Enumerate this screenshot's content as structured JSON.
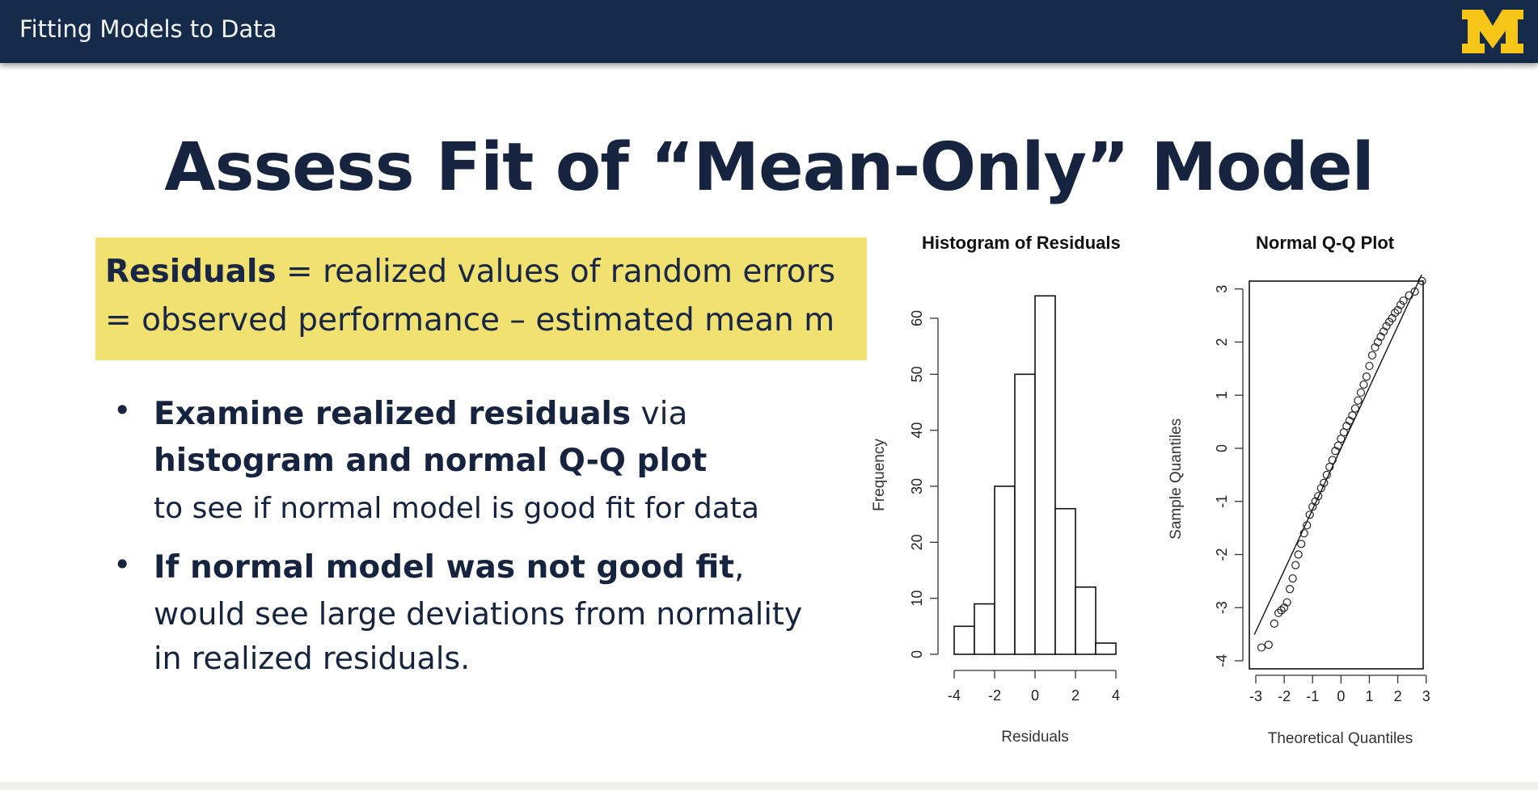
{
  "header": {
    "title": "Fitting Models to Data",
    "logo": "M",
    "colors": {
      "bar": "#162a4a",
      "logo": "#f5c518"
    }
  },
  "slide": {
    "title": "Assess Fit of “Mean-Only” Model",
    "highlight": {
      "line1_bold": "Residuals",
      "line1_rest": " = realized values of random errors",
      "line2": "= observed performance – estimated mean m",
      "color": "#f0e171"
    },
    "bullets": [
      {
        "bold1": "Examine realized residuals",
        "text1": " via",
        "bold2": "histogram and normal Q-Q plot",
        "text2": "to see if normal model is good fit for data"
      },
      {
        "bold1": "If normal model was not good fit",
        "text1": ",",
        "text2": "would see large deviations from normality",
        "text3": "in realized residuals."
      }
    ]
  },
  "chart_data": [
    {
      "type": "bar",
      "title": "Histogram of Residuals",
      "xlabel": "Residuals",
      "ylabel": "Frequency",
      "bins": [
        [
          -4,
          -3
        ],
        [
          -3,
          -2
        ],
        [
          -2,
          -1
        ],
        [
          -1,
          0
        ],
        [
          0,
          1
        ],
        [
          1,
          2
        ],
        [
          2,
          3
        ],
        [
          3,
          4
        ]
      ],
      "values": [
        5,
        9,
        30,
        50,
        64,
        26,
        12,
        2
      ],
      "xticks": [
        "-4",
        "-2",
        "0",
        "2",
        "4"
      ],
      "yticks": [
        "0",
        "10",
        "20",
        "30",
        "40",
        "50",
        "60"
      ],
      "xlim": [
        -4,
        4
      ],
      "ylim": [
        0,
        64
      ]
    },
    {
      "type": "scatter",
      "title": "Normal Q-Q Plot",
      "xlabel": "Theoretical Quantiles",
      "ylabel": "Sample Quantiles",
      "xticks": [
        "-3",
        "-2",
        "-1",
        "0",
        "1",
        "2",
        "3"
      ],
      "yticks": [
        "-4",
        "-3",
        "-2",
        "-1",
        "0",
        "1",
        "2",
        "3"
      ],
      "xlim": [
        -3,
        3
      ],
      "ylim": [
        -4,
        3.3
      ],
      "reference_line": {
        "intercept": 0,
        "slope": 1.15
      },
      "points_x": [
        -2.8,
        -2.55,
        -2.35,
        -2.2,
        -2.1,
        -2.0,
        -1.9,
        -1.8,
        -1.7,
        -1.6,
        -1.5,
        -1.4,
        -1.3,
        -1.2,
        -1.1,
        -1.0,
        -0.9,
        -0.8,
        -0.7,
        -0.6,
        -0.5,
        -0.4,
        -0.3,
        -0.2,
        -0.1,
        0.0,
        0.1,
        0.2,
        0.3,
        0.4,
        0.5,
        0.6,
        0.7,
        0.8,
        0.9,
        1.0,
        1.1,
        1.2,
        1.3,
        1.4,
        1.5,
        1.6,
        1.7,
        1.8,
        1.9,
        2.0,
        2.1,
        2.2,
        2.4,
        2.6,
        2.85
      ],
      "points_y": [
        -3.75,
        -3.7,
        -3.3,
        -3.1,
        -3.05,
        -3.0,
        -2.9,
        -2.65,
        -2.45,
        -2.2,
        -2.0,
        -1.8,
        -1.6,
        -1.45,
        -1.25,
        -1.1,
        -1.0,
        -0.9,
        -0.75,
        -0.65,
        -0.5,
        -0.35,
        -0.22,
        -0.05,
        0.05,
        0.18,
        0.3,
        0.42,
        0.52,
        0.62,
        0.75,
        0.9,
        1.05,
        1.2,
        1.35,
        1.55,
        1.75,
        1.9,
        2.0,
        2.1,
        2.2,
        2.3,
        2.38,
        2.45,
        2.55,
        2.6,
        2.7,
        2.78,
        2.88,
        2.95,
        3.15
      ]
    }
  ]
}
